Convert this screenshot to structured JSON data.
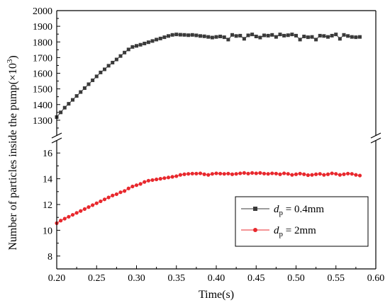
{
  "chart_data": {
    "type": "line",
    "title": "",
    "xlabel": "Time(s)",
    "ylabel_main": "Number of particles inside the pump(×10",
    "ylabel_sup": "3",
    "ylabel_tail": ")",
    "xlim": [
      0.2,
      0.6
    ],
    "x_ticks": [
      "0.20",
      "0.25",
      "0.30",
      "0.35",
      "0.40",
      "0.45",
      "0.50",
      "0.55",
      "0.60"
    ],
    "y_break": true,
    "upper_axis": {
      "ylim": [
        1200,
        2000
      ],
      "ticks": [
        "1300",
        "1400",
        "1500",
        "1600",
        "1700",
        "1800",
        "1900",
        "2000"
      ]
    },
    "lower_axis": {
      "ylim": [
        7,
        17
      ],
      "ticks": [
        "8",
        "10",
        "12",
        "14",
        "16"
      ]
    },
    "legend": {
      "position": "center-right",
      "entries": [
        {
          "symbol": "d",
          "sub": "p",
          "rest": " = 0.4mm"
        },
        {
          "symbol": "d",
          "sub": "p",
          "rest": " = 2mm"
        }
      ]
    },
    "series": [
      {
        "label": "dp = 0.4mm",
        "color": "#3a3a3a",
        "marker": "square",
        "axis": "upper",
        "x": [
          0.2,
          0.205,
          0.21,
          0.215,
          0.22,
          0.225,
          0.23,
          0.235,
          0.24,
          0.245,
          0.25,
          0.255,
          0.26,
          0.265,
          0.27,
          0.275,
          0.28,
          0.285,
          0.29,
          0.295,
          0.3,
          0.305,
          0.31,
          0.315,
          0.32,
          0.325,
          0.33,
          0.335,
          0.34,
          0.345,
          0.35,
          0.355,
          0.36,
          0.365,
          0.37,
          0.375,
          0.38,
          0.385,
          0.39,
          0.395,
          0.4,
          0.405,
          0.41,
          0.415,
          0.42,
          0.425,
          0.43,
          0.435,
          0.44,
          0.445,
          0.45,
          0.455,
          0.46,
          0.465,
          0.47,
          0.475,
          0.48,
          0.485,
          0.49,
          0.495,
          0.5,
          0.505,
          0.51,
          0.515,
          0.52,
          0.525,
          0.53,
          0.535,
          0.54,
          0.545,
          0.55,
          0.555,
          0.56,
          0.565,
          0.57,
          0.575,
          0.58
        ],
        "y": [
          1320,
          1350,
          1380,
          1405,
          1430,
          1455,
          1480,
          1505,
          1530,
          1555,
          1580,
          1605,
          1625,
          1648,
          1668,
          1688,
          1710,
          1732,
          1752,
          1768,
          1775,
          1782,
          1790,
          1798,
          1806,
          1815,
          1822,
          1830,
          1838,
          1845,
          1848,
          1846,
          1845,
          1843,
          1845,
          1842,
          1838,
          1836,
          1832,
          1828,
          1832,
          1835,
          1830,
          1815,
          1845,
          1838,
          1840,
          1820,
          1842,
          1848,
          1835,
          1828,
          1842,
          1840,
          1845,
          1832,
          1848,
          1840,
          1843,
          1848,
          1840,
          1815,
          1835,
          1830,
          1832,
          1815,
          1840,
          1838,
          1832,
          1840,
          1848,
          1820,
          1845,
          1838,
          1832,
          1830,
          1832
        ]
      },
      {
        "label": "dp = 2mm",
        "color": "#e8282d",
        "marker": "circle",
        "axis": "lower",
        "x": [
          0.2,
          0.205,
          0.21,
          0.215,
          0.22,
          0.225,
          0.23,
          0.235,
          0.24,
          0.245,
          0.25,
          0.255,
          0.26,
          0.265,
          0.27,
          0.275,
          0.28,
          0.285,
          0.29,
          0.295,
          0.3,
          0.305,
          0.31,
          0.315,
          0.32,
          0.325,
          0.33,
          0.335,
          0.34,
          0.345,
          0.35,
          0.355,
          0.36,
          0.365,
          0.37,
          0.375,
          0.38,
          0.385,
          0.39,
          0.395,
          0.4,
          0.405,
          0.41,
          0.415,
          0.42,
          0.425,
          0.43,
          0.435,
          0.44,
          0.445,
          0.45,
          0.455,
          0.46,
          0.465,
          0.47,
          0.475,
          0.48,
          0.485,
          0.49,
          0.495,
          0.5,
          0.505,
          0.51,
          0.515,
          0.52,
          0.525,
          0.53,
          0.535,
          0.54,
          0.545,
          0.55,
          0.555,
          0.56,
          0.565,
          0.57,
          0.575,
          0.58
        ],
        "y": [
          10.55,
          10.75,
          10.9,
          11.05,
          11.2,
          11.35,
          11.5,
          11.65,
          11.8,
          11.95,
          12.1,
          12.25,
          12.4,
          12.55,
          12.7,
          12.8,
          12.95,
          13.05,
          13.25,
          13.4,
          13.5,
          13.6,
          13.75,
          13.85,
          13.9,
          13.95,
          14.0,
          14.05,
          14.1,
          14.15,
          14.2,
          14.3,
          14.35,
          14.38,
          14.4,
          14.4,
          14.42,
          14.35,
          14.3,
          14.38,
          14.42,
          14.4,
          14.38,
          14.4,
          14.35,
          14.38,
          14.42,
          14.45,
          14.4,
          14.45,
          14.42,
          14.45,
          14.4,
          14.38,
          14.42,
          14.4,
          14.35,
          14.42,
          14.38,
          14.3,
          14.35,
          14.4,
          14.35,
          14.28,
          14.3,
          14.35,
          14.38,
          14.3,
          14.35,
          14.42,
          14.38,
          14.3,
          14.35,
          14.4,
          14.38,
          14.3,
          14.25
        ]
      }
    ]
  }
}
